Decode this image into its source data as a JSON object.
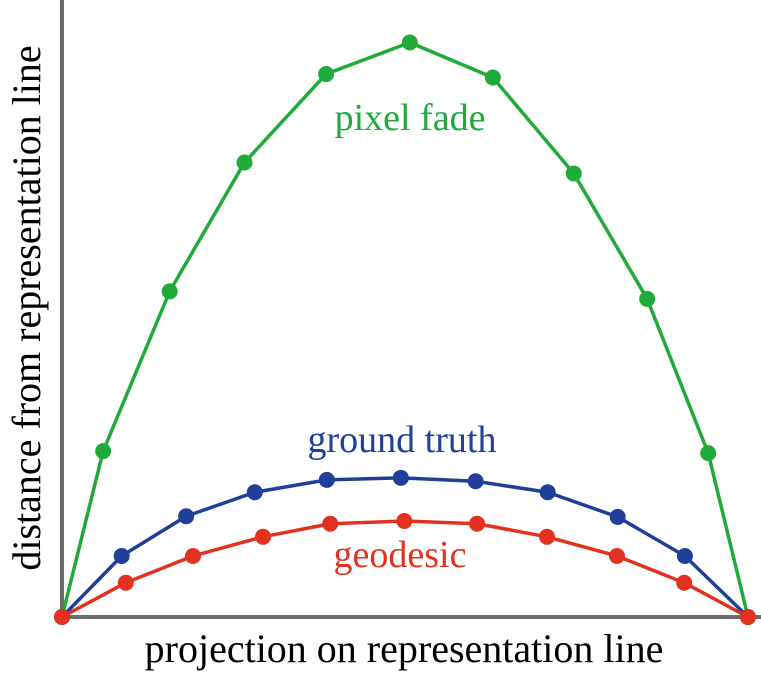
{
  "chart_data": {
    "type": "line",
    "xlabel": "projection on representation line",
    "ylabel": "distance from representation line",
    "xlim": [
      0,
      100
    ],
    "ylim": [
      0,
      90
    ],
    "series": [
      {
        "name": "pixel fade",
        "color": "#1faa3a",
        "x": [
          0,
          6.0,
          15.7,
          26.6,
          38.5,
          50.7,
          62.8,
          74.6,
          85.3,
          94.2,
          100
        ],
        "values": [
          0,
          24.2,
          47.5,
          66.3,
          79.2,
          83.8,
          78.7,
          64.7,
          46.4,
          23.9,
          0
        ]
      },
      {
        "name": "ground truth",
        "color": "#1f3f99",
        "x": [
          0,
          8.7,
          18.1,
          28.1,
          38.6,
          49.4,
          60.3,
          70.8,
          81.0,
          90.8,
          100
        ],
        "values": [
          0,
          8.9,
          14.7,
          18.2,
          20.0,
          20.3,
          19.8,
          18.2,
          14.6,
          8.9,
          0
        ]
      },
      {
        "name": "geodesic",
        "color": "#e2321f",
        "x": [
          0,
          9.3,
          19.1,
          29.3,
          39.1,
          49.9,
          60.5,
          70.7,
          80.9,
          90.7,
          100
        ],
        "values": [
          0,
          5.0,
          8.9,
          11.7,
          13.6,
          14.0,
          13.6,
          11.7,
          8.9,
          5.0,
          0
        ]
      }
    ]
  }
}
